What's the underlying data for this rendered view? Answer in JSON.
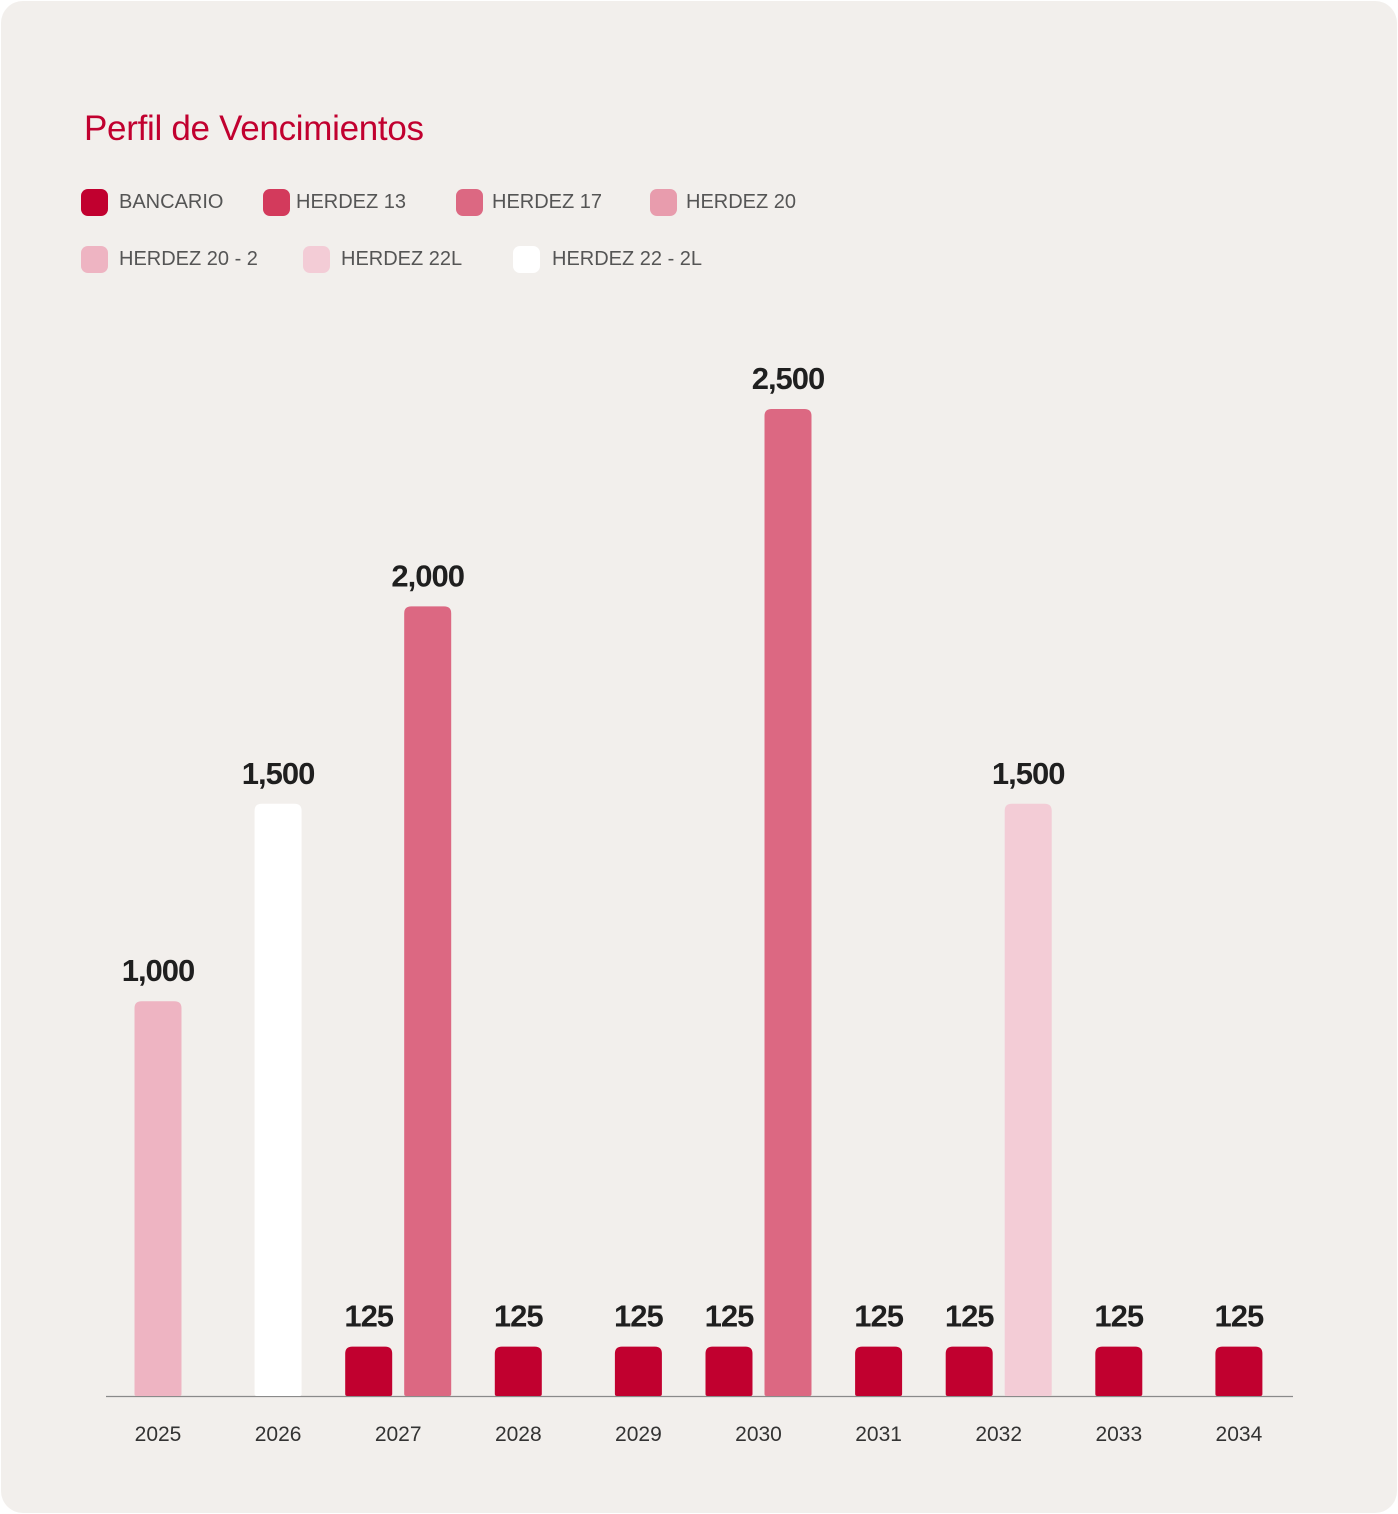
{
  "chart_data": {
    "type": "bar",
    "title": "Perfil de Vencimientos",
    "legend_placement": "top-left",
    "grid": false,
    "ylim": [
      0,
      2500
    ],
    "series": [
      {
        "name": "BANCARIO",
        "color": "#c1002f"
      },
      {
        "name": "HERDEZ 13",
        "color": "#d33a5c"
      },
      {
        "name": "HERDEZ 17",
        "color": "#dc6882"
      },
      {
        "name": "HERDEZ 20",
        "color": "#e89cad"
      },
      {
        "name": "HERDEZ 20 - 2",
        "color": "#eeb4c2"
      },
      {
        "name": "HERDEZ 22L",
        "color": "#f3ccd6"
      },
      {
        "name": "HERDEZ 22 - 2L",
        "color": "#ffffff"
      }
    ],
    "categories": [
      "2025",
      "2026",
      "2027",
      "2028",
      "2029",
      "2030",
      "2031",
      "2032",
      "2033",
      "2034"
    ],
    "bars": [
      {
        "year": "2025",
        "series": "HERDEZ 20 - 2",
        "value": 1000,
        "label": "1,000"
      },
      {
        "year": "2026",
        "series": "HERDEZ 22 - 2L",
        "value": 1500,
        "label": "1,500"
      },
      {
        "year": "2027",
        "series": "BANCARIO",
        "value": 125,
        "label": "125"
      },
      {
        "year": "2027",
        "series": "HERDEZ 17",
        "value": 2000,
        "label": "2,000"
      },
      {
        "year": "2028",
        "series": "BANCARIO",
        "value": 125,
        "label": "125"
      },
      {
        "year": "2029",
        "series": "BANCARIO",
        "value": 125,
        "label": "125"
      },
      {
        "year": "2030",
        "series": "BANCARIO",
        "value": 125,
        "label": "125"
      },
      {
        "year": "2030",
        "series": "HERDEZ 17",
        "value": 2500,
        "label": "2,500"
      },
      {
        "year": "2031",
        "series": "BANCARIO",
        "value": 125,
        "label": "125"
      },
      {
        "year": "2032",
        "series": "BANCARIO",
        "value": 125,
        "label": "125"
      },
      {
        "year": "2032",
        "series": "HERDEZ 22L",
        "value": 1500,
        "label": "1,500"
      },
      {
        "year": "2033",
        "series": "BANCARIO",
        "value": 125,
        "label": "125"
      },
      {
        "year": "2034",
        "series": "BANCARIO",
        "value": 125,
        "label": "125"
      }
    ]
  }
}
